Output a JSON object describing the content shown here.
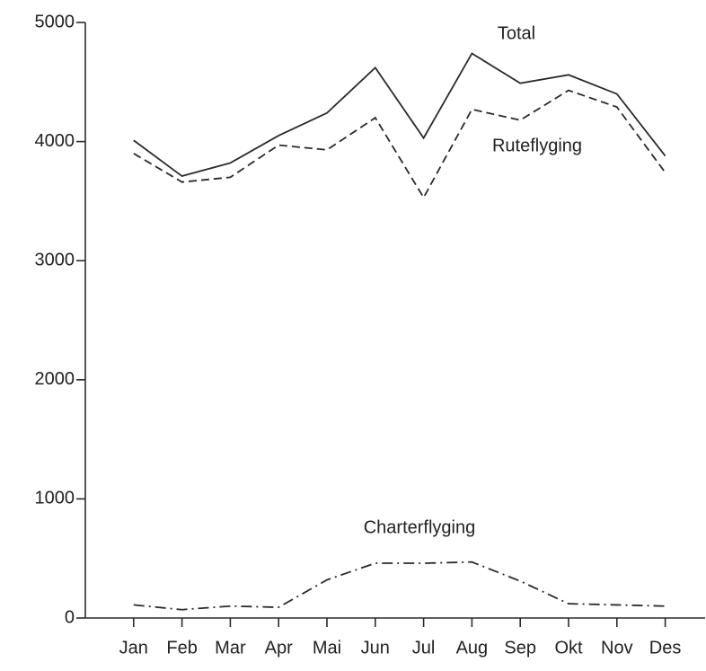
{
  "chart_data": {
    "type": "line",
    "categories": [
      "Jan",
      "Feb",
      "Mar",
      "Apr",
      "Mai",
      "Jun",
      "Jul",
      "Aug",
      "Sep",
      "Okt",
      "Nov",
      "Des"
    ],
    "series": [
      {
        "name": "Total",
        "color": "#2a2a2a",
        "style": "solid",
        "values": [
          4010,
          3710,
          3820,
          4050,
          4240,
          4620,
          4030,
          4740,
          4490,
          4560,
          4400,
          3880
        ]
      },
      {
        "name": "Ruteflyging",
        "color": "#2a2a2a",
        "style": "dashed",
        "values": [
          3900,
          3660,
          3700,
          3970,
          3930,
          4200,
          3530,
          4270,
          4180,
          4430,
          4290,
          3740
        ]
      },
      {
        "name": "Charterflyging",
        "color": "#2a2a2a",
        "style": "dashdot",
        "values": [
          110,
          70,
          100,
          90,
          320,
          460,
          460,
          470,
          310,
          120,
          110,
          100
        ]
      }
    ],
    "ylim": [
      0,
      5000
    ],
    "yticks": [
      0,
      1000,
      2000,
      3000,
      4000,
      5000
    ],
    "grid": false
  }
}
